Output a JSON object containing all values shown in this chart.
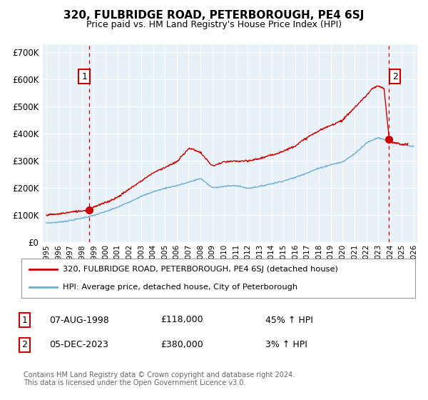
{
  "title": "320, FULBRIDGE ROAD, PETERBOROUGH, PE4 6SJ",
  "subtitle": "Price paid vs. HM Land Registry's House Price Index (HPI)",
  "ylabel_ticks": [
    "£0",
    "£100K",
    "£200K",
    "£300K",
    "£400K",
    "£500K",
    "£600K",
    "£700K"
  ],
  "ytick_values": [
    0,
    100000,
    200000,
    300000,
    400000,
    500000,
    600000,
    700000
  ],
  "ylim": [
    0,
    730000
  ],
  "xlim_start": 1994.7,
  "xlim_end": 2026.3,
  "sale1_date": 1998.6,
  "sale1_price": 118000,
  "sale2_date": 2023.92,
  "sale2_price": 380000,
  "sale1_text": "07-AUG-1998",
  "sale1_amount": "£118,000",
  "sale1_hpi": "45% ↑ HPI",
  "sale2_text": "05-DEC-2023",
  "sale2_amount": "£380,000",
  "sale2_hpi": "3% ↑ HPI",
  "hpi_line_color": "#6aaed6",
  "price_line_color": "#cc0000",
  "dashed_vline_color": "#cc0000",
  "plot_bg_color": "#e8f0f8",
  "background_color": "#ffffff",
  "grid_color": "#ffffff",
  "legend_label_red": "320, FULBRIDGE ROAD, PETERBOROUGH, PE4 6SJ (detached house)",
  "legend_label_blue": "HPI: Average price, detached house, City of Peterborough",
  "footer": "Contains HM Land Registry data © Crown copyright and database right 2024.\nThis data is licensed under the Open Government Licence v3.0.",
  "xtick_years": [
    1995,
    1996,
    1997,
    1998,
    1999,
    2000,
    2001,
    2002,
    2003,
    2004,
    2005,
    2006,
    2007,
    2008,
    2009,
    2010,
    2011,
    2012,
    2013,
    2014,
    2015,
    2016,
    2017,
    2018,
    2019,
    2020,
    2021,
    2022,
    2023,
    2024,
    2025,
    2026
  ]
}
